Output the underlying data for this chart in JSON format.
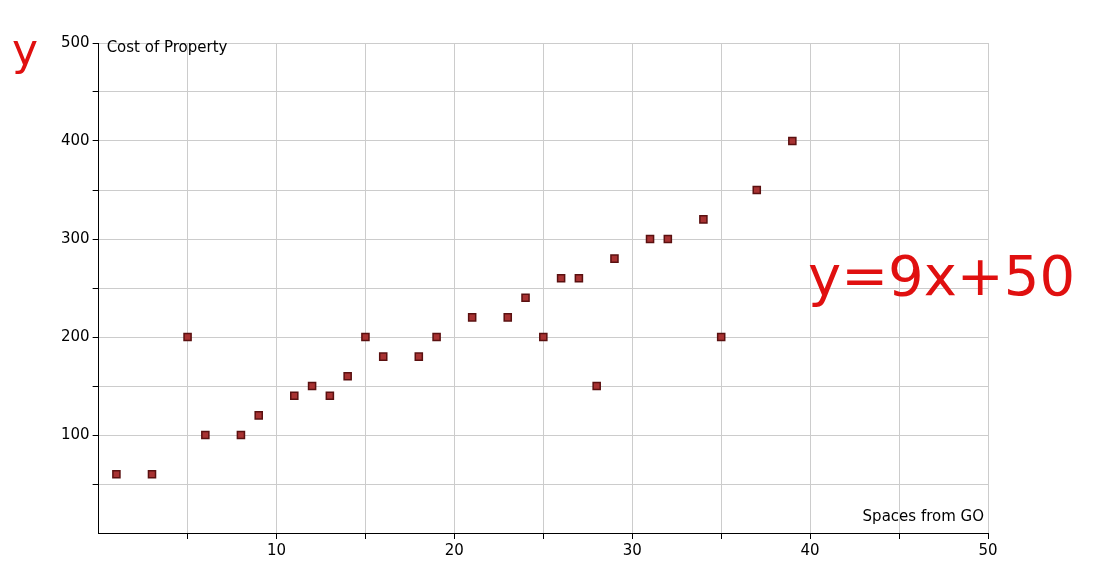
{
  "chart_data": {
    "type": "scatter",
    "xlabel": "Spaces from GO",
    "ylabel": "Cost of Property",
    "x": [
      1,
      3,
      5,
      6,
      8,
      9,
      11,
      12,
      13,
      14,
      15,
      16,
      18,
      19,
      21,
      23,
      24,
      25,
      26,
      27,
      28,
      29,
      31,
      32,
      34,
      35,
      37,
      39
    ],
    "values": [
      60,
      60,
      200,
      100,
      100,
      120,
      140,
      150,
      140,
      160,
      200,
      180,
      180,
      200,
      220,
      220,
      240,
      200,
      260,
      260,
      150,
      280,
      300,
      300,
      320,
      200,
      350,
      400
    ],
    "color": "#a83232",
    "marker": "square",
    "xlim": [
      0,
      50
    ],
    "xticks": [
      {
        "value": 5,
        "label": null
      },
      10,
      {
        "value": 15,
        "label": null
      },
      20,
      {
        "value": 25,
        "label": null
      },
      30,
      {
        "value": 35,
        "label": null
      },
      40,
      {
        "value": 45,
        "label": null
      },
      50
    ],
    "ylim": [
      0,
      500
    ],
    "yticks": [
      {
        "value": 50,
        "label": null
      },
      100,
      {
        "value": 150,
        "label": null
      },
      200,
      {
        "value": 250,
        "label": null
      },
      300,
      {
        "value": 350,
        "label": null
      },
      400,
      {
        "value": 450,
        "label": null
      },
      500
    ],
    "grid": true,
    "annotations": [
      "y",
      "y=9x+50"
    ]
  }
}
